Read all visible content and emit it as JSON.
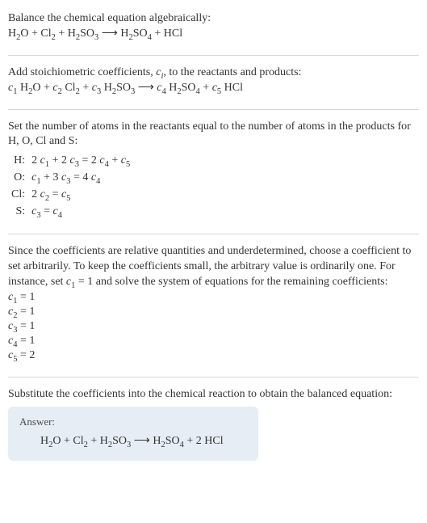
{
  "colors": {
    "text": "#333333",
    "rule": "#d8d8d8",
    "answer_bg": "#e6edf5",
    "answer_label": "#4a4a4a"
  },
  "typography": {
    "base_fontsize_pt": 11,
    "font_family": "Georgia / Times-like serif"
  },
  "section1": {
    "line1": "Balance the chemical equation algebraically:",
    "eq_html": "H<sub>2</sub>O + Cl<sub>2</sub> + H<sub>2</sub>SO<sub>3</sub>  ⟶  H<sub>2</sub>SO<sub>4</sub> + HCl"
  },
  "section2": {
    "line1_html": "Add stoichiometric coefficients, <span class=\"ital\">c<sub>i</sub></span>, to the reactants and products:",
    "eq_html": "<span class=\"ital\">c</span><sub>1</sub> H<sub>2</sub>O + <span class=\"ital\">c</span><sub>2</sub> Cl<sub>2</sub> + <span class=\"ital\">c</span><sub>3</sub> H<sub>2</sub>SO<sub>3</sub>  ⟶  <span class=\"ital\">c</span><sub>4</sub> H<sub>2</sub>SO<sub>4</sub> + <span class=\"ital\">c</span><sub>5</sub> HCl"
  },
  "section3": {
    "para": "Set the number of atoms in the reactants equal to the number of atoms in the products for H, O, Cl and S:",
    "rows": [
      {
        "label": "H:",
        "eq_html": "2 <span class=\"ital\">c</span><sub>1</sub> + 2 <span class=\"ital\">c</span><sub>3</sub> = 2 <span class=\"ital\">c</span><sub>4</sub> + <span class=\"ital\">c</span><sub>5</sub>"
      },
      {
        "label": "O:",
        "eq_html": "<span class=\"ital\">c</span><sub>1</sub> + 3 <span class=\"ital\">c</span><sub>3</sub> = 4 <span class=\"ital\">c</span><sub>4</sub>"
      },
      {
        "label": "Cl:",
        "eq_html": "2 <span class=\"ital\">c</span><sub>2</sub> = <span class=\"ital\">c</span><sub>5</sub>"
      },
      {
        "label": "S:",
        "eq_html": "<span class=\"ital\">c</span><sub>3</sub> = <span class=\"ital\">c</span><sub>4</sub>"
      }
    ]
  },
  "section4": {
    "para_html": "Since the coefficients are relative quantities and underdetermined, choose a coefficient to set arbitrarily. To keep the coefficients small, the arbitrary value is ordinarily one. For instance, set <span class=\"ital\">c</span><sub>1</sub> = 1 and solve the system of equations for the remaining coefficients:",
    "coeffs": [
      "<span class=\"ital\">c</span><sub>1</sub> = 1",
      "<span class=\"ital\">c</span><sub>2</sub> = 1",
      "<span class=\"ital\">c</span><sub>3</sub> = 1",
      "<span class=\"ital\">c</span><sub>4</sub> = 1",
      "<span class=\"ital\">c</span><sub>5</sub> = 2"
    ]
  },
  "section5": {
    "para": "Substitute the coefficients into the chemical reaction to obtain the balanced equation:",
    "answer_label": "Answer:",
    "answer_eq_html": "H<sub>2</sub>O + Cl<sub>2</sub> + H<sub>2</sub>SO<sub>3</sub>  ⟶  H<sub>2</sub>SO<sub>4</sub> + 2 HCl"
  }
}
